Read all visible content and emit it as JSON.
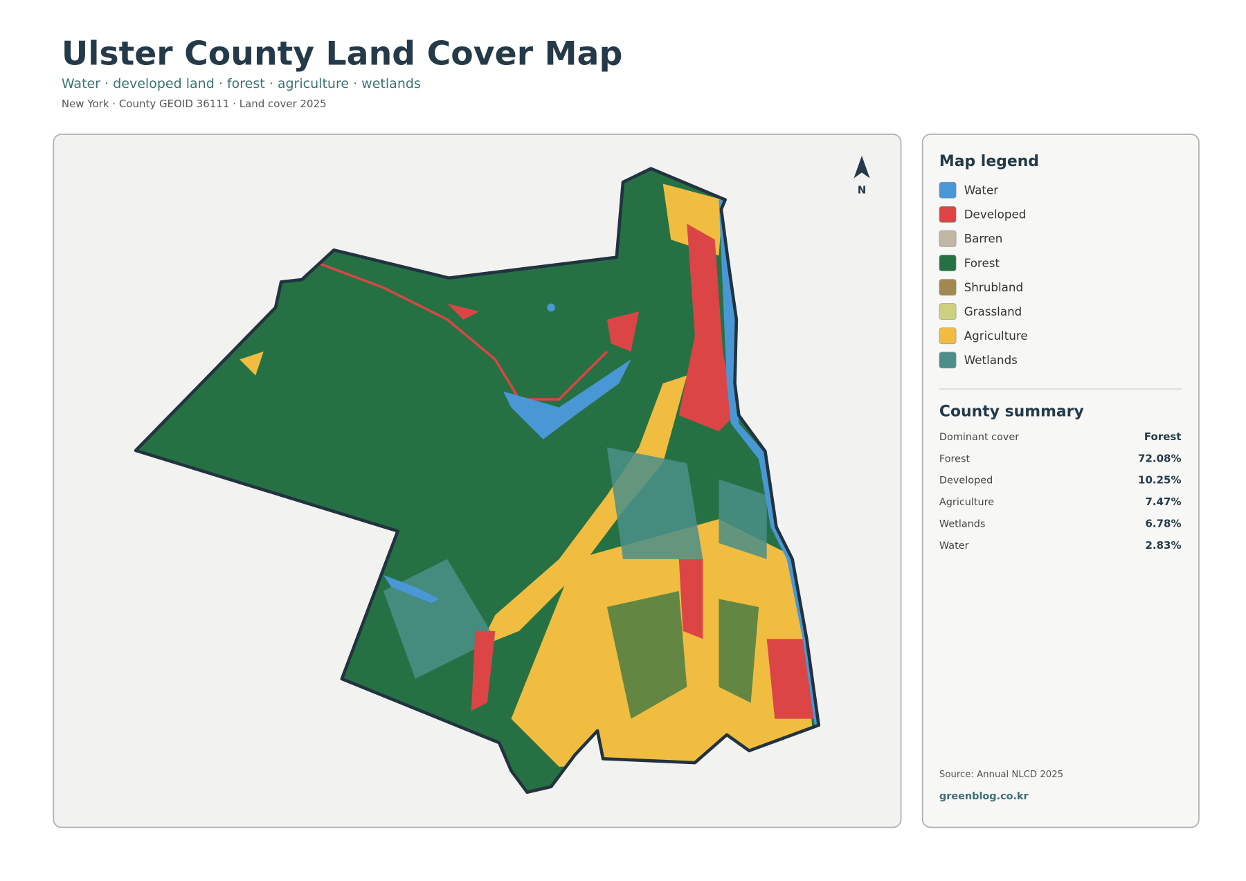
{
  "header": {
    "title": "Ulster County Land Cover Map",
    "subtitle": "Water · developed land · forest · agriculture · wetlands",
    "meta": "New York · County GEOID 36111 · Land cover 2025"
  },
  "map": {
    "north_label": "N"
  },
  "legend": {
    "title": "Map legend",
    "items": [
      {
        "label": "Water",
        "color": "#4a97d6"
      },
      {
        "label": "Developed",
        "color": "#dc4545"
      },
      {
        "label": "Barren",
        "color": "#bfb6a4"
      },
      {
        "label": "Forest",
        "color": "#267144"
      },
      {
        "label": "Shrubland",
        "color": "#a08850"
      },
      {
        "label": "Grassland",
        "color": "#cdd07e"
      },
      {
        "label": "Agriculture",
        "color": "#f0bd40"
      },
      {
        "label": "Wetlands",
        "color": "#4b8f88"
      }
    ]
  },
  "summary": {
    "title": "County summary",
    "rows": [
      {
        "label": "Dominant cover",
        "value": "Forest"
      },
      {
        "label": "Forest",
        "value": "72.08%"
      },
      {
        "label": "Developed",
        "value": "10.25%"
      },
      {
        "label": "Agriculture",
        "value": "7.47%"
      },
      {
        "label": "Wetlands",
        "value": "6.78%"
      },
      {
        "label": "Water",
        "value": "2.83%"
      }
    ]
  },
  "footer": {
    "source": "Source: Annual NLCD 2025",
    "site": "greenblog.co.kr"
  }
}
